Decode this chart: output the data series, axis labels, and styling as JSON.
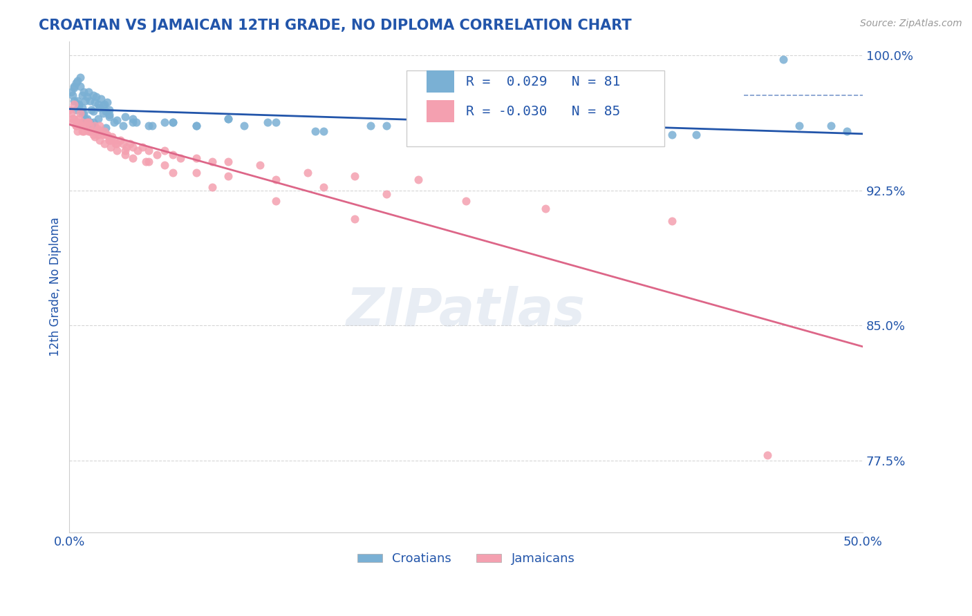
{
  "title": "CROATIAN VS JAMAICAN 12TH GRADE, NO DIPLOMA CORRELATION CHART",
  "source_text": "Source: ZipAtlas.com",
  "ylabel": "12th Grade, No Diploma",
  "xlim": [
    0.0,
    0.5
  ],
  "ylim": [
    0.735,
    1.008
  ],
  "ytick_labels": [
    "77.5%",
    "85.0%",
    "92.5%",
    "100.0%"
  ],
  "ytick_vals": [
    0.775,
    0.85,
    0.925,
    1.0
  ],
  "blue_R": 0.029,
  "blue_N": 81,
  "pink_R": -0.03,
  "pink_N": 85,
  "blue_color": "#7ab0d4",
  "pink_color": "#f4a0b0",
  "blue_line_color": "#2255aa",
  "pink_line_color": "#dd6688",
  "dashed_line_y": 0.978,
  "legend_blue_label": "Croatians",
  "legend_pink_label": "Jamaicans",
  "title_color": "#2255aa",
  "tick_color": "#2255aa",
  "watermark": "ZIPatlas",
  "blue_scatter_x": [
    0.001,
    0.002,
    0.003,
    0.004,
    0.005,
    0.006,
    0.007,
    0.008,
    0.009,
    0.01,
    0.011,
    0.012,
    0.013,
    0.014,
    0.015,
    0.016,
    0.017,
    0.018,
    0.019,
    0.02,
    0.021,
    0.022,
    0.023,
    0.024,
    0.025,
    0.003,
    0.005,
    0.007,
    0.009,
    0.011,
    0.013,
    0.015,
    0.018,
    0.021,
    0.025,
    0.03,
    0.035,
    0.04,
    0.05,
    0.06,
    0.08,
    0.1,
    0.13,
    0.16,
    0.2,
    0.25,
    0.3,
    0.38,
    0.45,
    0.48,
    0.004,
    0.006,
    0.008,
    0.01,
    0.013,
    0.016,
    0.019,
    0.023,
    0.028,
    0.034,
    0.042,
    0.052,
    0.065,
    0.08,
    0.1,
    0.125,
    0.155,
    0.19,
    0.23,
    0.275,
    0.33,
    0.395,
    0.46,
    0.49,
    0.003,
    0.008,
    0.015,
    0.025,
    0.04,
    0.065,
    0.11
  ],
  "blue_scatter_y": [
    0.98,
    0.978,
    0.982,
    0.985,
    0.975,
    0.972,
    0.983,
    0.978,
    0.98,
    0.975,
    0.977,
    0.98,
    0.975,
    0.97,
    0.978,
    0.974,
    0.977,
    0.973,
    0.971,
    0.976,
    0.972,
    0.973,
    0.969,
    0.974,
    0.97,
    0.983,
    0.986,
    0.988,
    0.968,
    0.965,
    0.961,
    0.963,
    0.965,
    0.968,
    0.966,
    0.964,
    0.966,
    0.963,
    0.961,
    0.963,
    0.961,
    0.965,
    0.963,
    0.958,
    0.961,
    0.959,
    0.956,
    0.956,
    0.998,
    0.961,
    0.97,
    0.973,
    0.968,
    0.965,
    0.963,
    0.96,
    0.958,
    0.96,
    0.963,
    0.961,
    0.963,
    0.961,
    0.963,
    0.961,
    0.965,
    0.963,
    0.958,
    0.961,
    0.958,
    0.955,
    0.953,
    0.956,
    0.961,
    0.958,
    0.975,
    0.971,
    0.969,
    0.967,
    0.965,
    0.963,
    0.961
  ],
  "pink_scatter_x": [
    0.0,
    0.001,
    0.002,
    0.003,
    0.004,
    0.005,
    0.006,
    0.007,
    0.008,
    0.009,
    0.01,
    0.011,
    0.012,
    0.013,
    0.014,
    0.015,
    0.016,
    0.017,
    0.018,
    0.019,
    0.02,
    0.021,
    0.022,
    0.023,
    0.024,
    0.025,
    0.026,
    0.027,
    0.028,
    0.029,
    0.03,
    0.032,
    0.034,
    0.036,
    0.038,
    0.04,
    0.043,
    0.046,
    0.05,
    0.055,
    0.06,
    0.065,
    0.07,
    0.08,
    0.09,
    0.1,
    0.12,
    0.15,
    0.18,
    0.22,
    0.002,
    0.004,
    0.006,
    0.008,
    0.01,
    0.013,
    0.016,
    0.019,
    0.022,
    0.026,
    0.03,
    0.035,
    0.04,
    0.05,
    0.06,
    0.08,
    0.1,
    0.13,
    0.16,
    0.2,
    0.25,
    0.3,
    0.38,
    0.003,
    0.007,
    0.012,
    0.018,
    0.025,
    0.035,
    0.048,
    0.065,
    0.09,
    0.13,
    0.18,
    0.44
  ],
  "pink_scatter_y": [
    0.97,
    0.968,
    0.963,
    0.965,
    0.961,
    0.958,
    0.965,
    0.961,
    0.963,
    0.958,
    0.961,
    0.963,
    0.958,
    0.961,
    0.958,
    0.956,
    0.961,
    0.958,
    0.956,
    0.961,
    0.958,
    0.956,
    0.958,
    0.956,
    0.956,
    0.953,
    0.953,
    0.955,
    0.953,
    0.951,
    0.951,
    0.953,
    0.951,
    0.949,
    0.951,
    0.949,
    0.947,
    0.949,
    0.947,
    0.945,
    0.947,
    0.945,
    0.943,
    0.943,
    0.941,
    0.941,
    0.939,
    0.935,
    0.933,
    0.931,
    0.965,
    0.961,
    0.963,
    0.958,
    0.961,
    0.958,
    0.955,
    0.953,
    0.951,
    0.949,
    0.947,
    0.945,
    0.943,
    0.941,
    0.939,
    0.935,
    0.933,
    0.931,
    0.927,
    0.923,
    0.919,
    0.915,
    0.908,
    0.973,
    0.968,
    0.963,
    0.959,
    0.953,
    0.947,
    0.941,
    0.935,
    0.927,
    0.919,
    0.909,
    0.778
  ]
}
